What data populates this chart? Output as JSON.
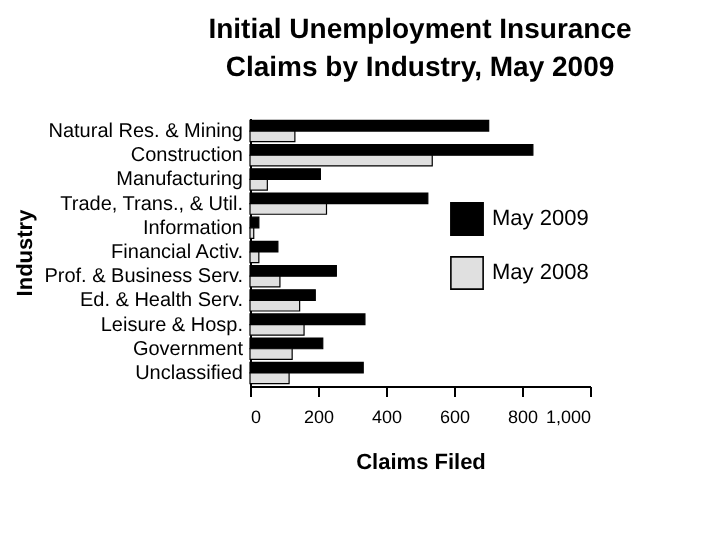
{
  "chart_data": {
    "type": "bar",
    "orientation": "horizontal",
    "title": "Initial Unemployment Insurance Claims by Industry, May 2009",
    "xlabel": "Claims Filed",
    "ylabel": "Industry",
    "categories": [
      "Natural Res. & Mining",
      "Construction",
      "Manufacturing",
      "Trade, Trans., & Util.",
      "Information",
      "Financial Activ.",
      "Prof. & Business Serv.",
      "Ed. & Health Serv.",
      "Leisure & Hosp.",
      "Government",
      "Unclassified"
    ],
    "series": [
      {
        "name": "May 2009",
        "color": "#000000",
        "values": [
          702,
          832,
          207,
          523,
          26,
          82,
          254,
          192,
          338,
          214,
          333
        ]
      },
      {
        "name": "May 2008",
        "color": "#e0e0e0",
        "values": [
          132,
          536,
          51,
          225,
          11,
          26,
          88,
          146,
          159,
          124,
          115
        ]
      }
    ],
    "xlim": [
      0,
      1000
    ],
    "xticks": [
      0,
      200,
      400,
      600,
      800,
      {
        "value": 1000,
        "label": "1,000"
      }
    ],
    "legend": "right",
    "grid": false
  }
}
